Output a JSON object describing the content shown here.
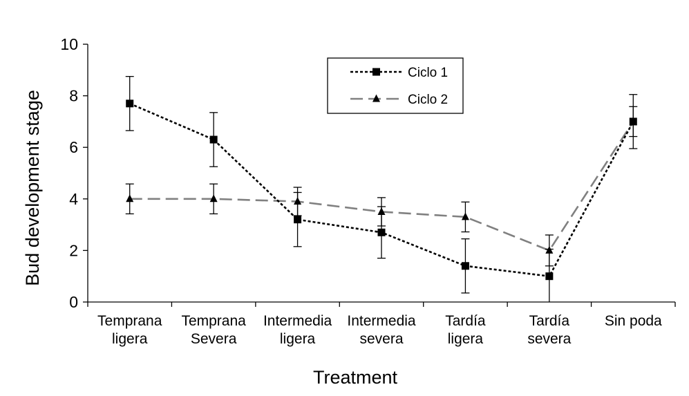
{
  "chart_data": {
    "type": "line",
    "title": "",
    "xlabel": "Treatment",
    "ylabel": "Bud development stage",
    "ylim": [
      0,
      10
    ],
    "yticks": [
      0,
      2,
      4,
      6,
      8,
      10
    ],
    "grid": false,
    "legend_position": "top-center",
    "categories": [
      [
        "Temprana",
        "ligera"
      ],
      [
        "Temprana",
        "Severa"
      ],
      [
        "Intermedia",
        "ligera"
      ],
      [
        "Intermedia",
        "severa"
      ],
      [
        "Tardía",
        "ligera"
      ],
      [
        "Tardía",
        "severa"
      ],
      [
        "Sin poda"
      ]
    ],
    "series": [
      {
        "name": "Ciclo 1",
        "color": "#000000",
        "line_style": "dotted",
        "marker": "square",
        "values": [
          7.7,
          6.3,
          3.2,
          2.7,
          1.4,
          1.0,
          7.0
        ],
        "errors": [
          1.05,
          1.05,
          1.05,
          1.0,
          1.05,
          1.05,
          1.05
        ]
      },
      {
        "name": "Ciclo 2",
        "color": "#808080",
        "line_style": "dashed",
        "marker": "triangle",
        "values": [
          4.0,
          4.0,
          3.9,
          3.5,
          3.3,
          2.0,
          7.0
        ],
        "errors": [
          0.58,
          0.58,
          0.55,
          0.55,
          0.58,
          0.6,
          0.58
        ]
      }
    ]
  }
}
